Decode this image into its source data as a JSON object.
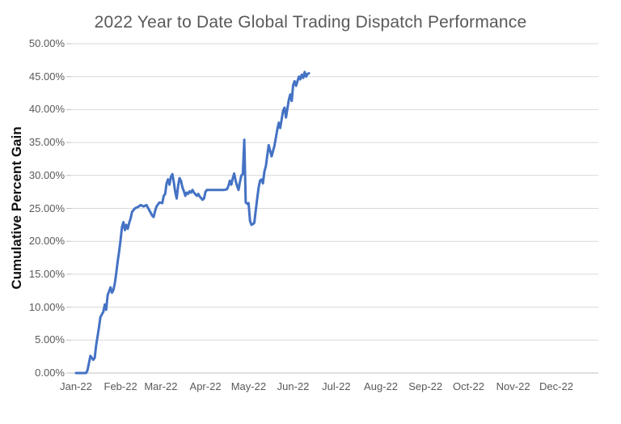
{
  "chart_data": {
    "type": "line",
    "title": "2022 Year to Date Global Trading Dispatch Performance",
    "ylabel": "Cumulative Percent Gain",
    "xlabel": "",
    "legend": "none",
    "grid": "horizontal",
    "ylim": [
      0,
      50
    ],
    "y_tick_step": 5,
    "y_tick_labels": [
      "0.00%",
      "5.00%",
      "10.00%",
      "15.00%",
      "20.00%",
      "25.00%",
      "30.00%",
      "35.00%",
      "40.00%",
      "45.00%",
      "50.00%"
    ],
    "x_tick_labels": [
      "Jan-22",
      "Feb-22",
      "Mar-22",
      "Apr-22",
      "May-22",
      "Jun-22",
      "Jul-22",
      "Aug-22",
      "Sep-22",
      "Oct-22",
      "Nov-22",
      "Dec-22"
    ],
    "x_unit": "days since 2022-01-01; ticks at month starts",
    "x_tick_days": [
      0,
      31,
      59,
      90,
      120,
      151,
      181,
      212,
      243,
      273,
      304,
      334
    ],
    "series": [
      {
        "name": "Cumulative percent gain",
        "color": "#4472C4",
        "points_day_pct": [
          [
            0,
            0
          ],
          [
            7,
            0
          ],
          [
            8,
            0.4
          ],
          [
            10,
            2.6
          ],
          [
            12,
            2.0
          ],
          [
            13,
            2.3
          ],
          [
            14,
            4.2
          ],
          [
            15,
            5.6
          ],
          [
            16,
            7.0
          ],
          [
            17,
            8.5
          ],
          [
            19,
            9.3
          ],
          [
            20,
            10.4
          ],
          [
            21,
            9.6
          ],
          [
            22,
            11.8
          ],
          [
            23,
            12.4
          ],
          [
            24,
            13.0
          ],
          [
            25,
            12.2
          ],
          [
            26,
            12.6
          ],
          [
            27,
            13.6
          ],
          [
            28,
            15.2
          ],
          [
            29,
            17.0
          ],
          [
            30,
            18.5
          ],
          [
            31,
            20.2
          ],
          [
            32,
            22.2
          ],
          [
            33,
            22.9
          ],
          [
            34,
            21.7
          ],
          [
            35,
            22.5
          ],
          [
            36,
            21.9
          ],
          [
            37,
            22.8
          ],
          [
            38,
            23.5
          ],
          [
            39,
            24.5
          ],
          [
            41,
            25.0
          ],
          [
            43,
            25.2
          ],
          [
            45,
            25.5
          ],
          [
            47,
            25.3
          ],
          [
            49,
            25.5
          ],
          [
            51,
            24.7
          ],
          [
            53,
            23.9
          ],
          [
            54,
            23.7
          ],
          [
            55,
            24.6
          ],
          [
            56,
            25.3
          ],
          [
            58,
            25.9
          ],
          [
            60,
            25.8
          ],
          [
            61,
            26.9
          ],
          [
            62,
            27.2
          ],
          [
            63,
            28.8
          ],
          [
            64,
            29.4
          ],
          [
            65,
            28.6
          ],
          [
            66,
            29.8
          ],
          [
            67,
            30.2
          ],
          [
            68,
            29.0
          ],
          [
            69,
            27.5
          ],
          [
            70,
            26.5
          ],
          [
            71,
            28.4
          ],
          [
            72,
            29.6
          ],
          [
            73,
            29.2
          ],
          [
            74,
            28.2
          ],
          [
            75,
            27.6
          ],
          [
            76,
            26.9
          ],
          [
            77,
            27.4
          ],
          [
            78,
            27.2
          ],
          [
            79,
            27.6
          ],
          [
            80,
            27.4
          ],
          [
            81,
            27.8
          ],
          [
            82,
            27.4
          ],
          [
            84,
            26.9
          ],
          [
            85,
            27.2
          ],
          [
            86,
            26.8
          ],
          [
            88,
            26.3
          ],
          [
            89,
            26.5
          ],
          [
            90,
            27.5
          ],
          [
            91,
            27.8
          ],
          [
            94,
            27.8
          ],
          [
            97,
            27.8
          ],
          [
            100,
            27.8
          ],
          [
            103,
            27.8
          ],
          [
            105,
            27.9
          ],
          [
            106,
            28.4
          ],
          [
            107,
            29.2
          ],
          [
            108,
            28.6
          ],
          [
            109,
            29.6
          ],
          [
            110,
            30.3
          ],
          [
            111,
            29.2
          ],
          [
            112,
            28.4
          ],
          [
            113,
            27.8
          ],
          [
            114,
            29.0
          ],
          [
            115,
            30.0
          ],
          [
            116,
            30.2
          ],
          [
            117,
            35.4
          ],
          [
            118,
            25.9
          ],
          [
            119,
            25.7
          ],
          [
            120,
            25.8
          ],
          [
            121,
            23.1
          ],
          [
            122,
            22.5
          ],
          [
            123,
            22.6
          ],
          [
            124,
            22.8
          ],
          [
            125,
            24.7
          ],
          [
            126,
            26.5
          ],
          [
            127,
            28.2
          ],
          [
            128,
            29.2
          ],
          [
            129,
            29.4
          ],
          [
            130,
            28.8
          ],
          [
            131,
            30.6
          ],
          [
            132,
            31.4
          ],
          [
            133,
            33.0
          ],
          [
            134,
            34.6
          ],
          [
            136,
            32.9
          ],
          [
            138,
            34.5
          ],
          [
            140,
            37.0
          ],
          [
            141,
            38.0
          ],
          [
            142,
            37.2
          ],
          [
            144,
            39.8
          ],
          [
            145,
            40.3
          ],
          [
            146,
            38.8
          ],
          [
            148,
            41.5
          ],
          [
            149,
            42.3
          ],
          [
            150,
            41.3
          ],
          [
            151,
            43.7
          ],
          [
            152,
            44.3
          ],
          [
            153,
            43.6
          ],
          [
            155,
            45.0
          ],
          [
            156,
            44.6
          ],
          [
            157,
            45.3
          ],
          [
            158,
            44.8
          ],
          [
            159,
            45.7
          ],
          [
            160,
            45.0
          ],
          [
            161,
            45.4
          ],
          [
            162,
            45.5
          ]
        ]
      }
    ]
  },
  "colors": {
    "line": "#4472C4",
    "title_text": "#595959",
    "tick_text": "#595959",
    "axis_title_text": "#111111",
    "gridline": "#d9d9d9",
    "axis_line": "#bfbfbf",
    "background": "#ffffff"
  }
}
